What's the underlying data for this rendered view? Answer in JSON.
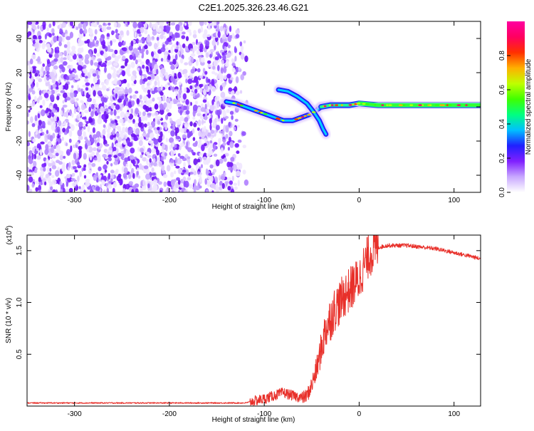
{
  "title": "C2E1.2025.326.23.46.G21",
  "colors": {
    "snr_line": "#e8302a",
    "axis": "#000000",
    "background": "#ffffff"
  },
  "chart_data": [
    {
      "type": "heatmap",
      "xlabel": "Height of straight line (km)",
      "ylabel": "Frequency (Hz)",
      "xlim": [
        -350,
        128
      ],
      "ylim": [
        -50,
        50
      ],
      "x_ticks": [
        -300,
        -200,
        -100,
        0,
        100
      ],
      "y_ticks": [
        -40,
        -20,
        0,
        20,
        40
      ],
      "colorbar": {
        "label": "Normalized spectral amplitude",
        "range": [
          0,
          1
        ],
        "ticks": [
          0.0,
          0.2,
          0.4,
          0.6,
          0.8
        ],
        "colormap": [
          "#ffffff",
          "#c8a8ff",
          "#8020ff",
          "#2020ff",
          "#00c0ff",
          "#00ff80",
          "#40ff00",
          "#c0ff00",
          "#ffb000",
          "#ff3000",
          "#ff0060",
          "#ff00a0"
        ]
      },
      "features": {
        "noise_region_x": [
          -350,
          -118
        ],
        "main_trace": [
          {
            "x": -140,
            "f": 3
          },
          {
            "x": -130,
            "f": 2
          },
          {
            "x": -120,
            "f": 0
          },
          {
            "x": -110,
            "f": -2
          },
          {
            "x": -100,
            "f": -4
          },
          {
            "x": -90,
            "f": -6
          },
          {
            "x": -80,
            "f": -8
          },
          {
            "x": -70,
            "f": -8
          },
          {
            "x": -60,
            "f": -6
          },
          {
            "x": -50,
            "f": -4
          },
          {
            "x": -40,
            "f": 0
          },
          {
            "x": -30,
            "f": 1
          },
          {
            "x": -20,
            "f": 1
          },
          {
            "x": -10,
            "f": 1
          },
          {
            "x": 0,
            "f": 2
          },
          {
            "x": 20,
            "f": 1
          },
          {
            "x": 50,
            "f": 1
          },
          {
            "x": 80,
            "f": 1
          },
          {
            "x": 110,
            "f": 1
          },
          {
            "x": 128,
            "f": 1
          }
        ],
        "upper_branch": [
          {
            "x": -85,
            "f": 10
          },
          {
            "x": -75,
            "f": 9
          },
          {
            "x": -65,
            "f": 6
          },
          {
            "x": -55,
            "f": 2
          },
          {
            "x": -48,
            "f": -3
          },
          {
            "x": -42,
            "f": -8
          },
          {
            "x": -38,
            "f": -13
          },
          {
            "x": -35,
            "f": -16
          }
        ]
      }
    },
    {
      "type": "line",
      "xlabel": "Height of straight line (km)",
      "ylabel": "SNR (10 * v/v)",
      "y_multiplier": "(x10",
      "y_multiplier_exp": "4",
      "xlim": [
        -350,
        128
      ],
      "ylim": [
        0,
        1.65
      ],
      "x_ticks": [
        -300,
        -200,
        -100,
        0,
        100
      ],
      "y_ticks": [
        0.5,
        1.0,
        1.5
      ],
      "y_tick_labels": [
        "0.5",
        "1.0",
        "1.5"
      ],
      "series": [
        {
          "x": [
            -350,
            -300,
            -250,
            -200,
            -150,
            -120,
            -110,
            -100,
            -90,
            -80,
            -70,
            -60,
            -55,
            -50,
            -45,
            -40,
            -35,
            -30,
            -25,
            -20,
            -15,
            -10,
            -5,
            0,
            5,
            10,
            15,
            20,
            25,
            30,
            40,
            50,
            60,
            70,
            80,
            90,
            100,
            110,
            120,
            128
          ],
          "y": [
            0.03,
            0.03,
            0.03,
            0.03,
            0.03,
            0.03,
            0.05,
            0.07,
            0.1,
            0.13,
            0.1,
            0.08,
            0.1,
            0.2,
            0.35,
            0.55,
            0.75,
            0.85,
            0.95,
            1.0,
            1.08,
            1.12,
            1.18,
            1.22,
            1.35,
            1.45,
            1.5,
            1.53,
            1.54,
            1.55,
            1.55,
            1.55,
            1.54,
            1.53,
            1.52,
            1.5,
            1.48,
            1.46,
            1.44,
            1.42
          ]
        }
      ]
    }
  ]
}
